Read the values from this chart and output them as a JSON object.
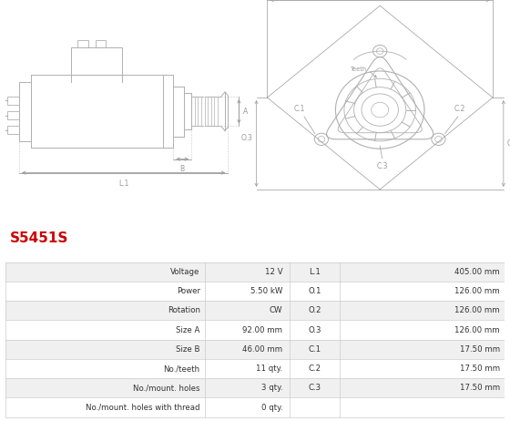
{
  "title": "S5451S",
  "title_color": "#cc0000",
  "bg_color": "#ffffff",
  "table_rows": [
    [
      "Voltage",
      "12 V",
      "L.1",
      "405.00 mm"
    ],
    [
      "Power",
      "5.50 kW",
      "O.1",
      "126.00 mm"
    ],
    [
      "Rotation",
      "CW",
      "O.2",
      "126.00 mm"
    ],
    [
      "Size A",
      "92.00 mm",
      "O.3",
      "126.00 mm"
    ],
    [
      "Size B",
      "46.00 mm",
      "C.1",
      "17.50 mm"
    ],
    [
      "No./teeth",
      "11 qty.",
      "C.2",
      "17.50 mm"
    ],
    [
      "No./mount. holes",
      "3 qty.",
      "C.3",
      "17.50 mm"
    ],
    [
      "No./mount. holes with thread",
      "0 qty.",
      "",
      ""
    ]
  ],
  "lc": "#b0b0b0",
  "dc": "#999999",
  "text_color": "#333333",
  "border_color": "#cccccc",
  "table_row_bg_odd": "#f0f0f0",
  "table_row_bg_even": "#ffffff"
}
